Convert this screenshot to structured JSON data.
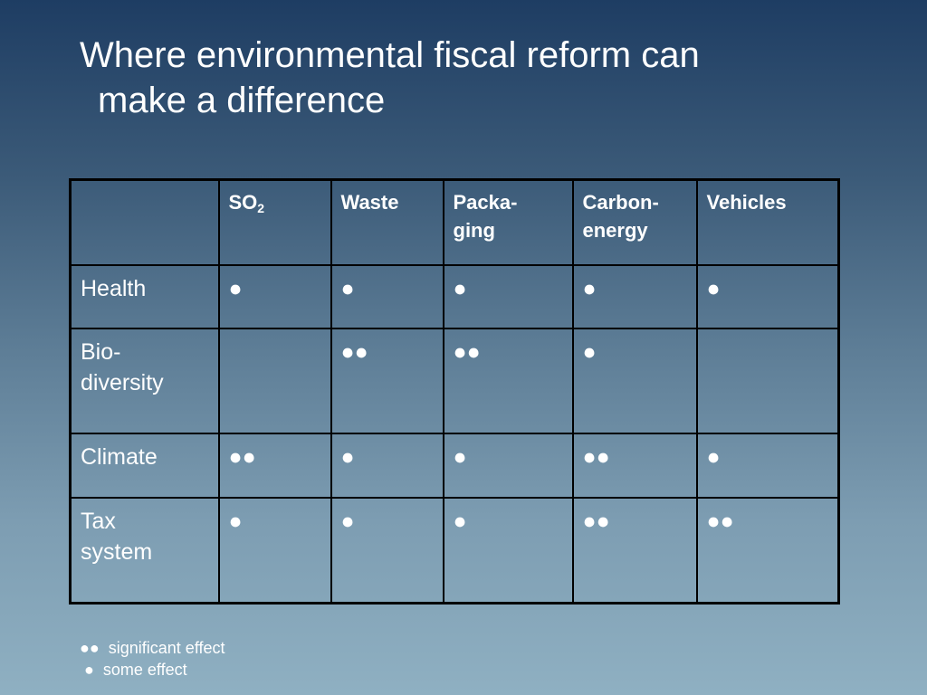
{
  "slide": {
    "title_line1": "Where environmental fiscal reform can",
    "title_line2": "make a difference"
  },
  "table": {
    "corner": "",
    "columns": [
      {
        "label_main": "SO",
        "label_sub": "2"
      },
      {
        "label_main": "Waste",
        "label_sub": ""
      },
      {
        "label_main": "Packa-\nging",
        "label_sub": ""
      },
      {
        "label_main": "Carbon-\nenergy",
        "label_sub": ""
      },
      {
        "label_main": "Vehicles",
        "label_sub": ""
      }
    ],
    "rows": [
      {
        "label": "Health",
        "cells": [
          "●",
          "●",
          "●",
          "●",
          "●"
        ]
      },
      {
        "label": "Bio-\ndiversity",
        "cells": [
          "",
          "●●",
          "●●",
          "●",
          ""
        ]
      },
      {
        "label": "Climate",
        "cells": [
          "●●",
          "●",
          "●",
          "●●",
          "●"
        ]
      },
      {
        "label": "Tax\nsystem",
        "cells": [
          "●",
          "●",
          "●",
          "●●",
          "●●"
        ]
      }
    ]
  },
  "legend": {
    "significant_symbol": "●●",
    "significant_text": "significant effect",
    "some_symbol": "●",
    "some_text": "some effect"
  }
}
